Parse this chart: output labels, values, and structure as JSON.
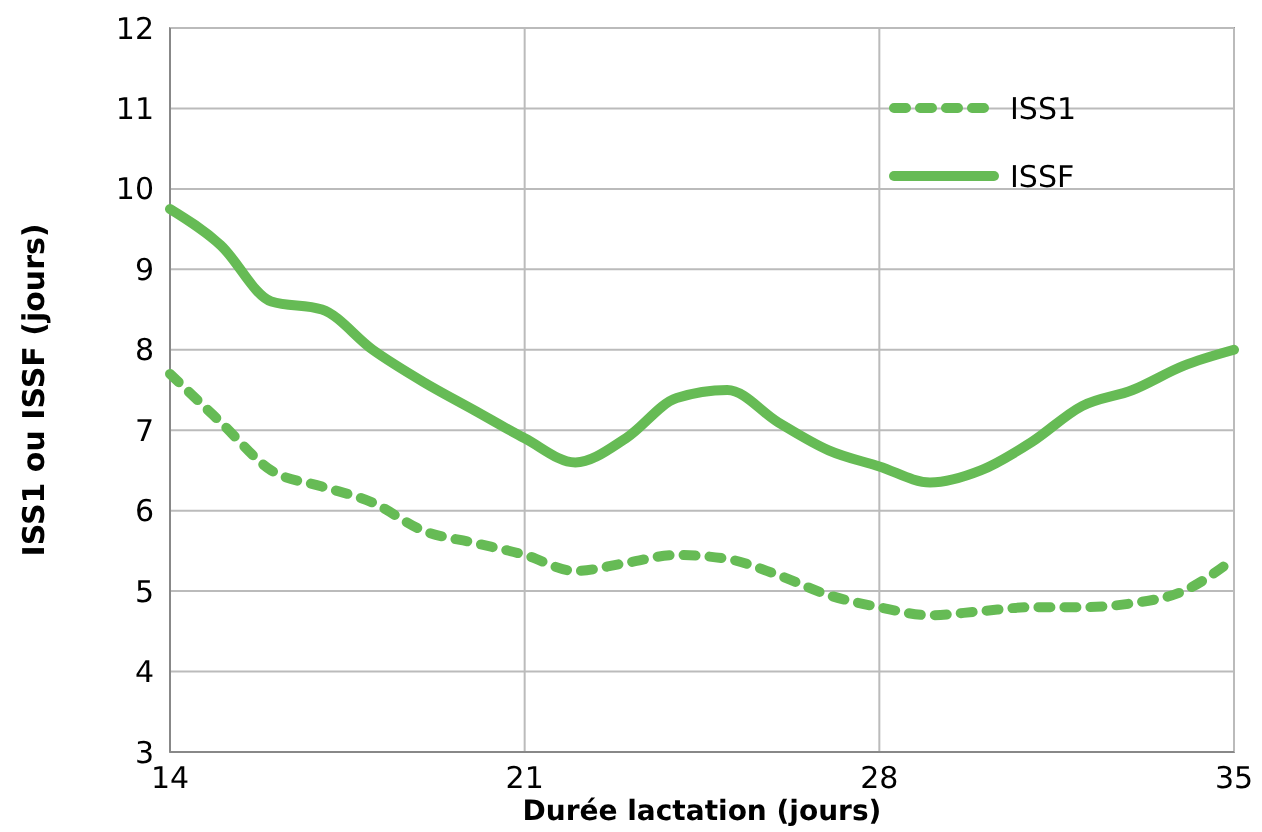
{
  "chart_data": {
    "type": "line",
    "xlabel": "Durée lactation (jours)",
    "ylabel": "ISS1 ou ISSF  (jours)",
    "xlim": [
      14,
      35
    ],
    "xticks": [
      14,
      21,
      28,
      35
    ],
    "ylim": [
      3,
      12
    ],
    "yticks": [
      3,
      4,
      5,
      6,
      7,
      8,
      9,
      10,
      11,
      12
    ],
    "grid": true,
    "legend": "top right",
    "x": [
      14,
      15,
      16,
      17,
      18,
      19,
      20,
      21,
      22,
      23,
      24,
      25,
      26,
      27,
      28,
      29,
      30,
      31,
      32,
      33,
      34,
      35
    ],
    "series": [
      {
        "name": "ISS1",
        "color": "#66bb55",
        "line_style": "dotted",
        "values": [
          7.7,
          7.1,
          6.5,
          6.3,
          6.1,
          5.75,
          5.6,
          5.45,
          5.25,
          5.35,
          5.45,
          5.4,
          5.2,
          4.95,
          4.8,
          4.7,
          4.75,
          4.8,
          4.8,
          4.85,
          5.0,
          5.4
        ]
      },
      {
        "name": "ISSF",
        "color": "#66bb55",
        "line_style": "solid",
        "values": [
          9.75,
          9.3,
          8.6,
          8.5,
          8.0,
          7.6,
          7.25,
          6.9,
          6.6,
          6.9,
          7.4,
          7.5,
          7.1,
          6.75,
          6.55,
          6.35,
          6.5,
          6.85,
          7.3,
          7.5,
          7.8,
          8.0
        ]
      }
    ]
  }
}
